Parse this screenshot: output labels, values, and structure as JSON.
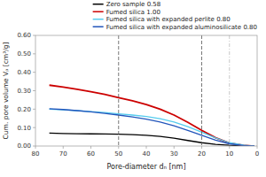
{
  "chart_data": {
    "type": "line",
    "xlabel": "Pore-diameter dₙ [nm]",
    "ylabel": "Cum. pore volume Vₚ [cm³/g]",
    "xlim": [
      80,
      0
    ],
    "ylim": [
      0.0,
      0.6
    ],
    "xticks": [
      80,
      70,
      60,
      50,
      40,
      30,
      20,
      10,
      0
    ],
    "yticks": [
      {
        "value": 0.0,
        "label": "0.00"
      },
      {
        "value": 0.1,
        "label": "0.10"
      },
      {
        "value": 0.2,
        "label": "0.20"
      },
      {
        "value": 0.3,
        "label": "0.30"
      },
      {
        "value": 0.4,
        "label": "0.40"
      },
      {
        "value": 0.5,
        "label": "0.50"
      },
      {
        "value": 0.6,
        "label": "0.60"
      }
    ],
    "grid": false,
    "legend": "upper right",
    "x": [
      75,
      70,
      65,
      60,
      55,
      50,
      45,
      40,
      35,
      30,
      25,
      20,
      15,
      10,
      5,
      2,
      1
    ],
    "series": [
      {
        "name": "Zero sample 0.58",
        "color": "#000000",
        "values": [
          0.07,
          0.068,
          0.067,
          0.066,
          0.065,
          0.064,
          0.062,
          0.058,
          0.052,
          0.043,
          0.03,
          0.018,
          0.009,
          0.004,
          0.001,
          0.0,
          0.0
        ]
      },
      {
        "name": "Fumed silica 1.00",
        "color": "#cc0000",
        "values": [
          0.33,
          0.32,
          0.308,
          0.295,
          0.28,
          0.262,
          0.245,
          0.225,
          0.2,
          0.168,
          0.128,
          0.085,
          0.045,
          0.016,
          0.004,
          0.001,
          0.0
        ]
      },
      {
        "name": "Fumed silica with expanded perlite 0.80",
        "color": "#55ccee",
        "values": [
          0.2,
          0.196,
          0.192,
          0.187,
          0.182,
          0.175,
          0.168,
          0.16,
          0.148,
          0.13,
          0.105,
          0.075,
          0.044,
          0.018,
          0.005,
          0.001,
          0.0
        ]
      },
      {
        "name": "Fumed silica with expanded aluminosilicate 0.80",
        "color": "#2255bb",
        "values": [
          0.202,
          0.198,
          0.192,
          0.185,
          0.177,
          0.168,
          0.158,
          0.146,
          0.13,
          0.11,
          0.085,
          0.058,
          0.032,
          0.012,
          0.003,
          0.001,
          0.0
        ]
      }
    ],
    "vlines": [
      {
        "x": 50,
        "color": "#555555",
        "line_style": "dashed"
      },
      {
        "x": 20,
        "color": "#555555",
        "line_style": "dashed"
      },
      {
        "x": 10,
        "color": "#bbbbbb",
        "line_style": "dashdot"
      }
    ]
  }
}
